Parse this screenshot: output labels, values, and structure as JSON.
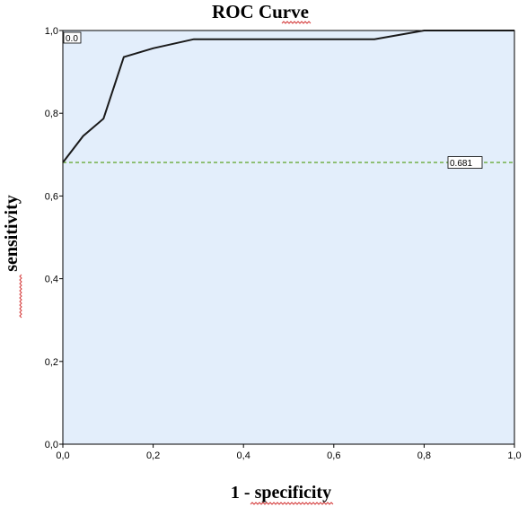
{
  "chart_data": {
    "type": "line",
    "title": "ROC Curve",
    "xlabel": "1 - specificity",
    "ylabel": "sensitivity",
    "xlim": [
      0,
      1
    ],
    "ylim": [
      0,
      1
    ],
    "x_ticks": [
      "0,0",
      "0,2",
      "0,4",
      "0,6",
      "0,8",
      "1,0"
    ],
    "y_ticks": [
      "0,0",
      "0,2",
      "0,4",
      "0,6",
      "0,8",
      "1,0"
    ],
    "grid": false,
    "plot_background": "#e3eefb",
    "series": [
      {
        "color": "#1a1a1a",
        "points": [
          [
            0.0,
            0.681
          ],
          [
            0.045,
            0.745
          ],
          [
            0.09,
            0.787
          ],
          [
            0.135,
            0.936
          ],
          [
            0.2,
            0.957
          ],
          [
            0.29,
            0.979
          ],
          [
            0.69,
            0.979
          ],
          [
            0.8,
            1.0
          ],
          [
            1.0,
            1.0
          ]
        ]
      }
    ],
    "reference_line": {
      "y": 0.681,
      "color": "#6aaa3a",
      "style": "dashed",
      "label": "0.681"
    },
    "corner_annotation": "0.0"
  }
}
